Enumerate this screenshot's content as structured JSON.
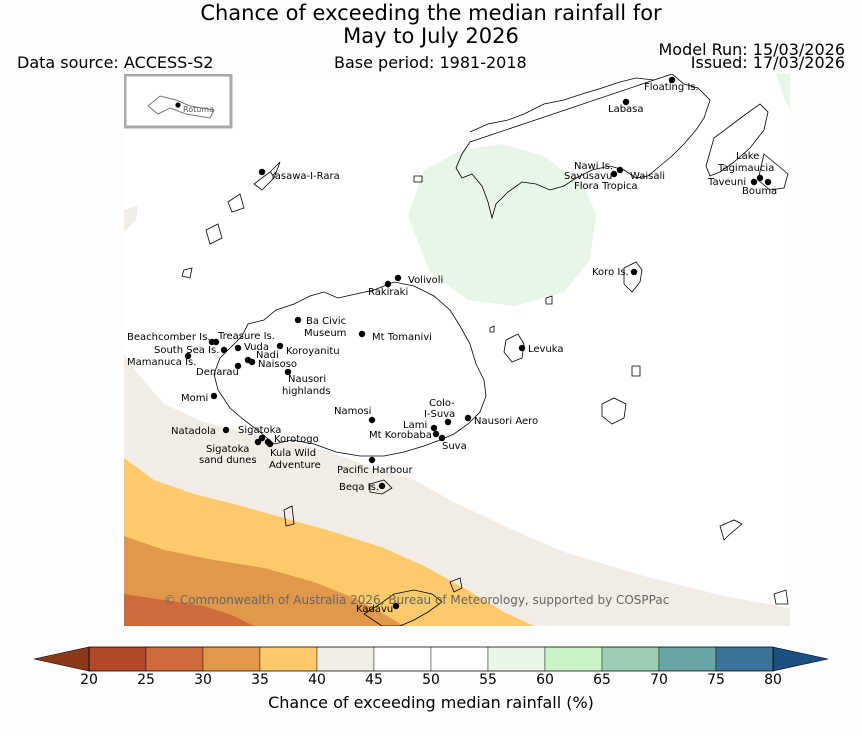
{
  "title": {
    "line1": "Chance of exceeding the median rainfall for",
    "line2": "May to July 2026"
  },
  "header": {
    "data_source": "Data source: ACCESS-S2",
    "base_period": "Base period: 1981-2018",
    "model_run": "Model Run: 15/03/2026",
    "issued": "Issued: 17/03/2026"
  },
  "inset": {
    "label": "Rotuma"
  },
  "map": {
    "copyright": "© Commonwealth of Australia 2026, Bureau of Meteorology, supported by COSPPac",
    "places": [
      {
        "name": "Floating Is."
      },
      {
        "name": "Labasa"
      },
      {
        "name": "Nawi Is."
      },
      {
        "name": "Savusavu"
      },
      {
        "name": "Waisali"
      },
      {
        "name": "Flora Tropica"
      },
      {
        "name": "Lake"
      },
      {
        "name": "Tagimaucia"
      },
      {
        "name": "Taveuni"
      },
      {
        "name": "Bouma"
      },
      {
        "name": "Yasawa-I-Rara"
      },
      {
        "name": "Koro Is."
      },
      {
        "name": "Volivoli"
      },
      {
        "name": "Rakiraki"
      },
      {
        "name": "Ba Civic"
      },
      {
        "name": "Museum"
      },
      {
        "name": "Mt Tomanivi"
      },
      {
        "name": "Beachcomber Is."
      },
      {
        "name": "Treasure Is."
      },
      {
        "name": "South Sea Is."
      },
      {
        "name": "Vuda"
      },
      {
        "name": "Koroyanitu"
      },
      {
        "name": "Nadi"
      },
      {
        "name": "Mamanuca Is."
      },
      {
        "name": "Naisoso"
      },
      {
        "name": "Denarau"
      },
      {
        "name": "Levuka"
      },
      {
        "name": "Nausori"
      },
      {
        "name": "highlands"
      },
      {
        "name": "Momi"
      },
      {
        "name": "Colo-"
      },
      {
        "name": "I-Suva"
      },
      {
        "name": "Namosi"
      },
      {
        "name": "Nausori Aero"
      },
      {
        "name": "Lami"
      },
      {
        "name": "Natadola"
      },
      {
        "name": "Sigatoka"
      },
      {
        "name": "Mt Korobaba"
      },
      {
        "name": "Korotogo"
      },
      {
        "name": "Suva"
      },
      {
        "name": "Sigatoka"
      },
      {
        "name": "sand dunes"
      },
      {
        "name": "Kula Wild"
      },
      {
        "name": "Adventure"
      },
      {
        "name": "Pacific Harbour"
      },
      {
        "name": "Beqa Is."
      },
      {
        "name": "Kadavu"
      }
    ]
  },
  "legend": {
    "label": "Chance of exceeding median rainfall (%)",
    "ticks": [
      "20",
      "25",
      "30",
      "35",
      "40",
      "45",
      "50",
      "55",
      "60",
      "65",
      "70",
      "75",
      "80"
    ],
    "colors": {
      "under": "#8c3a1a",
      "bins": [
        "#b4482a",
        "#cf6a3a",
        "#e2984a",
        "#fcca6a",
        "#f2ece6",
        "#ffffff",
        "#ffffff",
        "#e8f6e8",
        "#c8f4c8",
        "#9ccdb4",
        "#6aa4a4",
        "#3b7496"
      ],
      "over": "#1b4f82"
    }
  },
  "chart_data": {
    "type": "heatmap",
    "title": "Chance of exceeding the median rainfall for May to July 2026",
    "colorbar_label": "Chance of exceeding median rainfall (%)",
    "colorbar_range": [
      20,
      80
    ],
    "colorbar_step": 5,
    "regions": [
      {
        "area": "far south-west (towards Kadavu)",
        "range": [
          20,
          25
        ]
      },
      {
        "area": "south-west",
        "range": [
          25,
          30
        ]
      },
      {
        "area": "south-west",
        "range": [
          30,
          35
        ]
      },
      {
        "area": "southern waters south of Viti Levu",
        "range": [
          35,
          40
        ]
      },
      {
        "area": "western edge and southern band",
        "range": [
          40,
          45
        ]
      },
      {
        "area": "most of the domain",
        "range": [
          45,
          55
        ]
      },
      {
        "area": "north-east near Vanua Levu",
        "range": [
          55,
          60
        ]
      }
    ]
  }
}
